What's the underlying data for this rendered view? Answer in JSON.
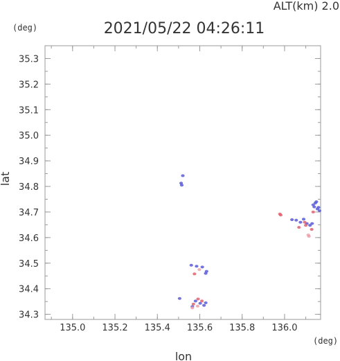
{
  "chart_data": {
    "type": "scatter",
    "title": "2021/05/22 04:26:11",
    "subtitle": "ALT(km) 2.0",
    "xlabel": "lon",
    "ylabel": "lat",
    "xunit": "(deg)",
    "yunit": "(deg)",
    "xlim": [
      134.87,
      136.17
    ],
    "ylim": [
      34.28,
      35.35
    ],
    "xticks": [
      135.0,
      135.2,
      135.4,
      135.6,
      135.8,
      136.0
    ],
    "xtick_labels": [
      "135.0",
      "135.2",
      "135.4",
      "135.6",
      "135.8",
      "136.0"
    ],
    "yticks": [
      34.3,
      34.4,
      34.5,
      34.6,
      34.7,
      34.8,
      34.9,
      35.0,
      35.1,
      35.2,
      35.3
    ],
    "ytick_labels": [
      "34.3",
      "34.4",
      "34.5",
      "34.6",
      "34.7",
      "34.8",
      "34.9",
      "35.0",
      "35.1",
      "35.2",
      "35.3"
    ],
    "grid": false,
    "colors": {
      "positive": "#e06070",
      "negative": "#5a5ad8",
      "light_positive": "#f0a0a8"
    },
    "series": [
      {
        "color_key": "negative",
        "points": [
          {
            "x": 135.512,
            "y": 34.813
          },
          {
            "x": 135.515,
            "y": 34.805
          },
          {
            "x": 135.52,
            "y": 34.842
          },
          {
            "x": 135.56,
            "y": 34.492
          },
          {
            "x": 135.585,
            "y": 34.488
          },
          {
            "x": 135.628,
            "y": 34.46
          },
          {
            "x": 135.632,
            "y": 34.468
          },
          {
            "x": 135.612,
            "y": 34.485
          },
          {
            "x": 135.565,
            "y": 34.33
          },
          {
            "x": 135.58,
            "y": 34.352
          },
          {
            "x": 135.602,
            "y": 34.343
          },
          {
            "x": 135.62,
            "y": 34.335
          },
          {
            "x": 135.628,
            "y": 34.345
          },
          {
            "x": 135.505,
            "y": 34.362
          },
          {
            "x": 136.035,
            "y": 34.67
          },
          {
            "x": 136.055,
            "y": 34.668
          },
          {
            "x": 136.075,
            "y": 34.66
          },
          {
            "x": 136.09,
            "y": 34.672
          },
          {
            "x": 136.105,
            "y": 34.655
          },
          {
            "x": 136.12,
            "y": 34.648
          },
          {
            "x": 136.13,
            "y": 34.655
          },
          {
            "x": 136.135,
            "y": 34.728
          },
          {
            "x": 136.145,
            "y": 34.735
          },
          {
            "x": 136.155,
            "y": 34.712
          },
          {
            "x": 136.16,
            "y": 34.718
          },
          {
            "x": 136.15,
            "y": 34.74
          },
          {
            "x": 136.14,
            "y": 34.72
          },
          {
            "x": 136.165,
            "y": 34.705
          }
        ]
      },
      {
        "color_key": "positive",
        "points": [
          {
            "x": 135.978,
            "y": 34.692
          },
          {
            "x": 135.982,
            "y": 34.688
          },
          {
            "x": 135.57,
            "y": 34.34
          },
          {
            "x": 135.592,
            "y": 34.36
          },
          {
            "x": 135.61,
            "y": 34.352
          },
          {
            "x": 135.575,
            "y": 34.458
          },
          {
            "x": 136.068,
            "y": 34.64
          },
          {
            "x": 136.1,
            "y": 34.648
          },
          {
            "x": 136.128,
            "y": 34.632
          },
          {
            "x": 136.095,
            "y": 34.66
          },
          {
            "x": 136.135,
            "y": 34.7
          }
        ]
      },
      {
        "color_key": "light_positive",
        "points": [
          {
            "x": 135.565,
            "y": 34.325
          },
          {
            "x": 135.59,
            "y": 34.332
          },
          {
            "x": 136.112,
            "y": 34.61
          },
          {
            "x": 136.115,
            "y": 34.605
          },
          {
            "x": 135.598,
            "y": 34.475
          }
        ]
      }
    ]
  }
}
